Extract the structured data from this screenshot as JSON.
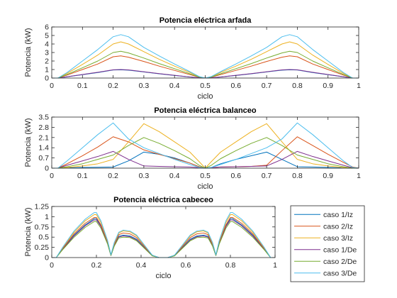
{
  "colors": {
    "series": [
      "#0072BD",
      "#D95319",
      "#EDB120",
      "#7E2F8E",
      "#77AC30",
      "#4DBEEE"
    ],
    "axis": "#262626",
    "background": "#ffffff"
  },
  "legend": {
    "placement": "right of bottom subplot",
    "entries": [
      "caso 1/Iz",
      "caso 2/Iz",
      "caso 3/Iz",
      "caso 1/De",
      "caso 2/De",
      "caso 3/De"
    ]
  },
  "chart_data": [
    {
      "type": "line",
      "title": "Potencia eléctrica arfada",
      "xlabel": "ciclo",
      "ylabel": "Potencia (kW)",
      "xlim": [
        0,
        1
      ],
      "ylim": [
        0,
        6
      ],
      "xticks": [
        "0",
        "0.1",
        "0.2",
        "0.3",
        "0.4",
        "0.5",
        "0.6",
        "0.7",
        "0.8",
        "0.9",
        "1"
      ],
      "yticks": [
        "0",
        "1",
        "2",
        "3",
        "4",
        "5",
        "6"
      ],
      "grid": false,
      "x": [
        0,
        0.02,
        0.05,
        0.1,
        0.15,
        0.2,
        0.225,
        0.25,
        0.3,
        0.35,
        0.4,
        0.45,
        0.48,
        0.5,
        0.52,
        0.55,
        0.6,
        0.65,
        0.7,
        0.75,
        0.775,
        0.8,
        0.85,
        0.9,
        0.95,
        0.98,
        1
      ],
      "series": [
        {
          "name": "caso 1/Iz",
          "values": [
            0,
            0,
            0.15,
            0.4,
            0.65,
            0.95,
            0.97,
            0.93,
            0.72,
            0.5,
            0.3,
            0.12,
            0.03,
            0,
            0.03,
            0.12,
            0.3,
            0.5,
            0.72,
            0.93,
            0.97,
            0.95,
            0.65,
            0.4,
            0.15,
            0,
            0
          ]
        },
        {
          "name": "caso 2/Iz",
          "values": [
            0,
            0,
            0.35,
            1.0,
            1.65,
            2.5,
            2.6,
            2.45,
            1.95,
            1.4,
            0.9,
            0.4,
            0.1,
            0,
            0.1,
            0.4,
            0.9,
            1.4,
            1.95,
            2.45,
            2.6,
            2.5,
            1.65,
            1.0,
            0.35,
            0,
            0
          ]
        },
        {
          "name": "caso 3/Iz",
          "values": [
            0,
            0,
            0.55,
            1.6,
            2.7,
            4.0,
            4.25,
            4.0,
            3.1,
            2.2,
            1.4,
            0.65,
            0.15,
            0,
            0.15,
            0.65,
            1.4,
            2.2,
            3.1,
            4.0,
            4.25,
            4.0,
            2.7,
            1.6,
            0.55,
            0,
            0
          ]
        },
        {
          "name": "caso 1/De",
          "values": [
            0,
            0,
            0.16,
            0.42,
            0.68,
            0.97,
            1.0,
            0.96,
            0.74,
            0.52,
            0.32,
            0.13,
            0.03,
            0,
            0.03,
            0.13,
            0.32,
            0.52,
            0.74,
            0.96,
            1.0,
            0.97,
            0.68,
            0.42,
            0.16,
            0,
            0
          ]
        },
        {
          "name": "caso 2/De",
          "values": [
            0,
            0,
            0.42,
            1.2,
            2.0,
            3.0,
            3.15,
            2.95,
            2.35,
            1.7,
            1.1,
            0.5,
            0.12,
            0,
            0.12,
            0.5,
            1.1,
            1.7,
            2.35,
            2.95,
            3.15,
            3.0,
            2.0,
            1.2,
            0.42,
            0,
            0
          ]
        },
        {
          "name": "caso 3/De",
          "values": [
            0,
            0,
            0.65,
            2.0,
            3.35,
            4.85,
            5.1,
            4.85,
            3.6,
            2.6,
            1.65,
            0.75,
            0.18,
            0,
            0.18,
            0.75,
            1.65,
            2.6,
            3.6,
            4.85,
            5.1,
            4.85,
            3.35,
            2.0,
            0.65,
            0,
            0
          ]
        }
      ]
    },
    {
      "type": "line",
      "title": "Potencia eléctrica balanceo",
      "xlabel": "ciclo",
      "ylabel": "Potencia (kW)",
      "xlim": [
        0,
        1
      ],
      "ylim": [
        0,
        3.5
      ],
      "xticks": [
        "0",
        "0.1",
        "0.2",
        "0.3",
        "0.4",
        "0.5",
        "0.6",
        "0.7",
        "0.8",
        "0.9",
        "1"
      ],
      "yticks": [
        "0",
        "0.7",
        "1.4",
        "2.1",
        "2.8",
        "3.5"
      ],
      "grid": false,
      "x": [
        0,
        0.02,
        0.05,
        0.1,
        0.15,
        0.2,
        0.25,
        0.3,
        0.35,
        0.4,
        0.45,
        0.48,
        0.5,
        0.52,
        0.55,
        0.6,
        0.65,
        0.7,
        0.75,
        0.8,
        0.85,
        0.9,
        0.95,
        0.98,
        1
      ],
      "series": [
        {
          "name": "caso 1/Iz",
          "values": [
            0,
            0,
            0.02,
            0.05,
            0.06,
            0.08,
            0.5,
            1.1,
            0.95,
            0.7,
            0.35,
            0.1,
            0,
            0.05,
            0.3,
            0.6,
            0.85,
            1.1,
            0.6,
            0.1,
            0.08,
            0.05,
            0.02,
            0,
            0
          ]
        },
        {
          "name": "caso 2/Iz",
          "values": [
            0,
            0,
            0.3,
            0.85,
            1.45,
            2.15,
            1.8,
            1.25,
            0.95,
            0.65,
            0.35,
            0.1,
            0,
            0.04,
            0.08,
            0.1,
            0.12,
            0.2,
            1.2,
            2.15,
            1.55,
            0.95,
            0.4,
            0.08,
            0
          ]
        },
        {
          "name": "caso 3/Iz",
          "values": [
            0,
            0,
            0.05,
            0.15,
            0.3,
            0.6,
            1.8,
            3.05,
            2.5,
            1.8,
            1.1,
            0.45,
            0,
            0.45,
            1.1,
            1.8,
            2.5,
            3.05,
            1.8,
            0.6,
            0.3,
            0.15,
            0.05,
            0,
            0
          ]
        },
        {
          "name": "caso 1/De",
          "values": [
            0,
            0,
            0.2,
            0.5,
            0.8,
            1.15,
            0.6,
            0.15,
            0.12,
            0.1,
            0.08,
            0.03,
            0,
            0.03,
            0.08,
            0.1,
            0.12,
            0.15,
            0.6,
            1.15,
            0.8,
            0.5,
            0.2,
            0.03,
            0
          ]
        },
        {
          "name": "caso 2/De",
          "values": [
            0,
            0,
            0.1,
            0.3,
            0.6,
            0.9,
            1.55,
            2.1,
            1.7,
            1.2,
            0.65,
            0.2,
            0,
            0.2,
            0.65,
            1.2,
            1.7,
            2.1,
            1.55,
            0.9,
            0.6,
            0.3,
            0.1,
            0,
            0
          ]
        },
        {
          "name": "caso 3/De",
          "values": [
            0,
            0,
            0.5,
            1.4,
            2.3,
            3.1,
            2.0,
            1.4,
            1.0,
            0.6,
            0.25,
            0.05,
            0,
            0.05,
            0.25,
            0.6,
            1.0,
            1.4,
            2.0,
            3.1,
            2.3,
            1.4,
            0.5,
            0.05,
            0
          ]
        }
      ]
    },
    {
      "type": "line",
      "title": "Potencia eléctrica cabeceo",
      "xlabel": "ciclo",
      "ylabel": "Potencia (kW)",
      "xlim": [
        0,
        1
      ],
      "ylim": [
        0,
        1.25
      ],
      "xticks": [
        "0",
        "0.2",
        "0.4",
        "0.6",
        "0.8",
        "1"
      ],
      "yticks": [
        "0",
        "0.25",
        "0.5",
        "0.75",
        "1",
        "1.25"
      ],
      "grid": false,
      "x": [
        0,
        0.02,
        0.05,
        0.1,
        0.15,
        0.19,
        0.2,
        0.22,
        0.25,
        0.265,
        0.28,
        0.3,
        0.32,
        0.35,
        0.38,
        0.42,
        0.45,
        0.48,
        0.5,
        0.52,
        0.55,
        0.58,
        0.62,
        0.65,
        0.68,
        0.7,
        0.72,
        0.735,
        0.75,
        0.78,
        0.8,
        0.81,
        0.85,
        0.9,
        0.95,
        0.98,
        1
      ],
      "series": [
        {
          "name": "caso 1/Iz",
          "values": [
            0,
            0,
            0.22,
            0.55,
            0.8,
            0.95,
            0.95,
            0.78,
            0.35,
            0.05,
            0.3,
            0.52,
            0.55,
            0.53,
            0.45,
            0.22,
            0.05,
            0,
            0,
            0,
            0.05,
            0.22,
            0.45,
            0.53,
            0.55,
            0.52,
            0.3,
            0.05,
            0.35,
            0.78,
            0.95,
            0.95,
            0.8,
            0.55,
            0.22,
            0,
            0
          ]
        },
        {
          "name": "caso 2/Iz",
          "values": [
            0,
            0,
            0.23,
            0.58,
            0.84,
            0.98,
            0.98,
            0.8,
            0.37,
            0.06,
            0.32,
            0.56,
            0.6,
            0.58,
            0.49,
            0.24,
            0.05,
            0,
            0,
            0,
            0.05,
            0.24,
            0.49,
            0.58,
            0.6,
            0.56,
            0.32,
            0.06,
            0.37,
            0.8,
            0.98,
            0.98,
            0.84,
            0.58,
            0.23,
            0,
            0
          ]
        },
        {
          "name": "caso 3/Iz",
          "values": [
            0,
            0,
            0.25,
            0.62,
            0.9,
            1.05,
            1.05,
            0.86,
            0.4,
            0.06,
            0.35,
            0.6,
            0.65,
            0.63,
            0.53,
            0.26,
            0.06,
            0,
            0,
            0,
            0.06,
            0.26,
            0.53,
            0.63,
            0.65,
            0.6,
            0.35,
            0.06,
            0.4,
            0.86,
            1.05,
            1.05,
            0.9,
            0.62,
            0.25,
            0,
            0
          ]
        },
        {
          "name": "caso 1/De",
          "values": [
            0,
            0,
            0.21,
            0.53,
            0.78,
            0.92,
            0.92,
            0.76,
            0.34,
            0.05,
            0.29,
            0.5,
            0.53,
            0.51,
            0.43,
            0.21,
            0.05,
            0,
            0,
            0,
            0.05,
            0.21,
            0.43,
            0.51,
            0.53,
            0.5,
            0.29,
            0.05,
            0.34,
            0.76,
            0.92,
            0.92,
            0.78,
            0.53,
            0.21,
            0,
            0
          ]
        },
        {
          "name": "caso 2/De",
          "values": [
            0,
            0,
            0.2,
            0.5,
            0.74,
            0.88,
            0.88,
            0.72,
            0.33,
            0.05,
            0.28,
            0.48,
            0.5,
            0.49,
            0.41,
            0.2,
            0.04,
            0,
            0,
            0,
            0.04,
            0.2,
            0.41,
            0.49,
            0.5,
            0.48,
            0.28,
            0.05,
            0.33,
            0.72,
            0.88,
            0.88,
            0.74,
            0.5,
            0.2,
            0,
            0
          ]
        },
        {
          "name": "caso 3/De",
          "values": [
            0,
            0,
            0.26,
            0.65,
            0.94,
            1.1,
            1.1,
            0.9,
            0.42,
            0.07,
            0.37,
            0.62,
            0.67,
            0.65,
            0.55,
            0.27,
            0.06,
            0,
            0,
            0,
            0.06,
            0.27,
            0.55,
            0.65,
            0.67,
            0.62,
            0.37,
            0.07,
            0.42,
            0.9,
            1.1,
            1.1,
            0.94,
            0.65,
            0.26,
            0,
            0
          ]
        }
      ]
    }
  ]
}
